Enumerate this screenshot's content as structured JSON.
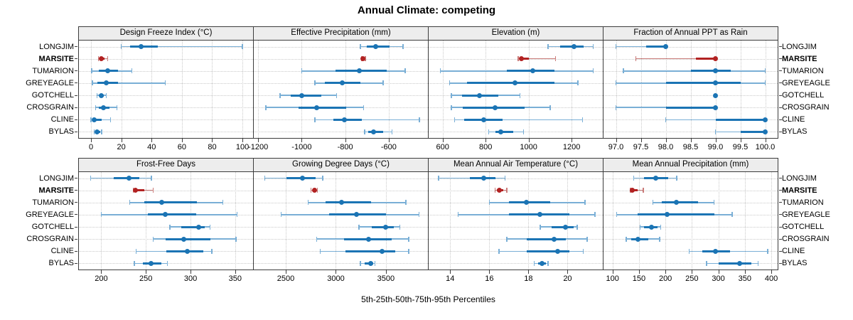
{
  "title": "Annual Climate: competing",
  "xlabel": "5th-25th-50th-75th-95th Percentiles",
  "sites": [
    "LONGJIM",
    "MARSITE",
    "TUMARION",
    "GREYEAGLE",
    "GOTCHELL",
    "CROSGRAIN",
    "CLINE",
    "BYLAS"
  ],
  "highlight_site": "MARSITE",
  "colors": {
    "series_blue": "#1B74B4",
    "series_blue_light": "#7AAFD6",
    "highlight_red": "#B22222",
    "highlight_red_light": "#CA7B79",
    "panel_header_bg": "#EDEDED",
    "panel_border": "#3C3C3C",
    "grid_dotted": "#C9C9C9",
    "text": "#000000"
  },
  "chart_data": {
    "type": "scatter",
    "subtype": "trellis dot plot with 5th-25th-50th-75th-95th percentile intervals",
    "layout": {
      "rows": 2,
      "cols": 4,
      "grid": "dotted",
      "legend": "none"
    },
    "percentile_order": [
      "p5",
      "p25",
      "p50",
      "p75",
      "p95"
    ],
    "panels": [
      {
        "title": "Design Freeze Index (°C)",
        "row": 0,
        "col": 0,
        "xlim": [
          -8,
          107
        ],
        "ticks": [
          0,
          20,
          40,
          60,
          80,
          100
        ],
        "tick_labels": [
          "0",
          "20",
          "40",
          "60",
          "80",
          "100"
        ],
        "values": [
          [
            20,
            26,
            33,
            44,
            100
          ],
          [
            5,
            6,
            7,
            9,
            11
          ],
          [
            0.5,
            5,
            11,
            18,
            27
          ],
          [
            1,
            4,
            10,
            18,
            49
          ],
          [
            4,
            5.5,
            7,
            8.5,
            10
          ],
          [
            3,
            5,
            8,
            12,
            17
          ],
          [
            0,
            1,
            2,
            7,
            13
          ],
          [
            2,
            3,
            4,
            6,
            7
          ]
        ]
      },
      {
        "title": "Effective Precipitation (mm)",
        "row": 0,
        "col": 1,
        "xlim": [
          -1220,
          -420
        ],
        "ticks": [
          -1200,
          -1000,
          -800,
          -600
        ],
        "tick_labels": [
          "-1200",
          "-1000",
          "-800",
          "-600"
        ],
        "values": [
          [
            -730,
            -700,
            -660,
            -595,
            -535
          ],
          [
            -724,
            -721,
            -718,
            -714,
            -708
          ],
          [
            -1000,
            -845,
            -735,
            -610,
            -525
          ],
          [
            -940,
            -895,
            -815,
            -730,
            -625
          ],
          [
            -1100,
            -1050,
            -1000,
            -910,
            -840
          ],
          [
            -1165,
            -1015,
            -930,
            -795,
            -715
          ],
          [
            -940,
            -855,
            -805,
            -725,
            -460
          ],
          [
            -710,
            -695,
            -670,
            -625,
            -585
          ]
        ]
      },
      {
        "title": "Elevation (m)",
        "row": 0,
        "col": 2,
        "xlim": [
          535,
          1345
        ],
        "ticks": [
          600,
          800,
          1000,
          1200
        ],
        "tick_labels": [
          "600",
          "800",
          "1000",
          "1200"
        ],
        "values": [
          [
            1090,
            1145,
            1210,
            1255,
            1300
          ],
          [
            952,
            958,
            965,
            1000,
            1125
          ],
          [
            590,
            900,
            1020,
            1120,
            1300
          ],
          [
            633,
            715,
            936,
            1120,
            1230
          ],
          [
            640,
            690,
            770,
            860,
            960
          ],
          [
            640,
            695,
            845,
            980,
            1100
          ],
          [
            655,
            700,
            790,
            880,
            1250
          ],
          [
            815,
            845,
            870,
            930,
            977
          ]
        ]
      },
      {
        "title": "Fraction of Annual PPT as Rain",
        "row": 0,
        "col": 3,
        "xlim": [
          96.75,
          100.25
        ],
        "ticks": [
          97.0,
          97.5,
          98.0,
          98.5,
          99.0,
          99.5,
          100.0
        ],
        "tick_labels": [
          "97.0",
          "97.5",
          "98.0",
          "98.5",
          "99.0",
          "99.5",
          "100.0"
        ],
        "values": [
          [
            97.0,
            97.6,
            98.0,
            98.0,
            98.0
          ],
          [
            97.4,
            98.6,
            99.0,
            99.0,
            99.0
          ],
          [
            97.15,
            98.5,
            99.0,
            99.3,
            100.0
          ],
          [
            97.0,
            98.0,
            99.0,
            99.5,
            100.0
          ],
          [
            99.0,
            99.0,
            99.0,
            99.0,
            99.0
          ],
          [
            97.0,
            98.0,
            99.0,
            99.0,
            99.0
          ],
          [
            98.0,
            99.0,
            100.0,
            100.0,
            100.0
          ],
          [
            99.0,
            99.5,
            100.0,
            100.0,
            100.0
          ]
        ]
      },
      {
        "title": "Frost-Free Days",
        "row": 1,
        "col": 0,
        "xlim": [
          175,
          370
        ],
        "ticks": [
          200,
          250,
          300,
          350
        ],
        "tick_labels": [
          "200",
          "250",
          "300",
          "350"
        ],
        "values": [
          [
            188,
            214,
            231,
            243,
            256
          ],
          [
            236,
            237,
            238,
            248,
            258
          ],
          [
            232,
            248,
            268,
            307,
            336
          ],
          [
            200,
            252,
            272,
            306,
            352
          ],
          [
            277,
            290,
            309,
            316,
            322
          ],
          [
            258,
            272,
            292,
            322,
            351
          ],
          [
            239,
            273,
            296,
            314,
            324
          ],
          [
            237,
            247,
            256,
            267,
            274
          ]
        ]
      },
      {
        "title": "Growing Degree Days (°C)",
        "row": 1,
        "col": 1,
        "xlim": [
          2180,
          3920
        ],
        "ticks": [
          2500,
          3000,
          3500
        ],
        "tick_labels": [
          "2500",
          "3000",
          "3500"
        ],
        "values": [
          [
            2290,
            2510,
            2670,
            2800,
            2870
          ],
          [
            2750,
            2775,
            2790,
            2800,
            2815
          ],
          [
            2725,
            2900,
            3055,
            3355,
            3700
          ],
          [
            2455,
            2930,
            3205,
            3500,
            3830
          ],
          [
            3230,
            3360,
            3500,
            3580,
            3640
          ],
          [
            2810,
            3080,
            3330,
            3555,
            3730
          ],
          [
            2845,
            3095,
            3460,
            3590,
            3730
          ],
          [
            3245,
            3290,
            3350,
            3375,
            3390
          ]
        ]
      },
      {
        "title": "Mean Annual Air Temperature (°C)",
        "row": 1,
        "col": 2,
        "xlim": [
          12.9,
          21.8
        ],
        "ticks": [
          14,
          16,
          18,
          20
        ],
        "tick_labels": [
          "14",
          "16",
          "18",
          "20"
        ],
        "values": [
          [
            13.4,
            15.0,
            15.7,
            16.3,
            16.8
          ],
          [
            16.3,
            16.4,
            16.5,
            16.7,
            16.9
          ],
          [
            16.0,
            17.0,
            17.9,
            19.1,
            20.9
          ],
          [
            14.4,
            17.0,
            18.6,
            20.1,
            21.4
          ],
          [
            18.6,
            19.2,
            19.9,
            20.3,
            20.5
          ],
          [
            16.9,
            17.9,
            19.3,
            19.9,
            21.0
          ],
          [
            16.5,
            17.9,
            19.5,
            20.1,
            20.8
          ],
          [
            18.3,
            18.5,
            18.7,
            18.9,
            19.0
          ]
        ]
      },
      {
        "title": "Mean Annual Precipitation (mm)",
        "row": 1,
        "col": 3,
        "xlim": [
          83,
          412
        ],
        "ticks": [
          100,
          150,
          200,
          250,
          300,
          350,
          400
        ],
        "tick_labels": [
          "100",
          "150",
          "200",
          "250",
          "300",
          "350",
          "400"
        ],
        "values": [
          [
            140,
            160,
            182,
            205,
            221
          ],
          [
            134,
            136,
            138,
            148,
            158
          ],
          [
            176,
            193,
            221,
            262,
            292
          ],
          [
            108,
            148,
            203,
            292,
            326
          ],
          [
            152,
            160,
            173,
            185,
            191
          ],
          [
            126,
            136,
            148,
            167,
            189
          ],
          [
            245,
            270,
            295,
            322,
            393
          ],
          [
            278,
            300,
            340,
            362,
            375
          ]
        ]
      }
    ]
  }
}
